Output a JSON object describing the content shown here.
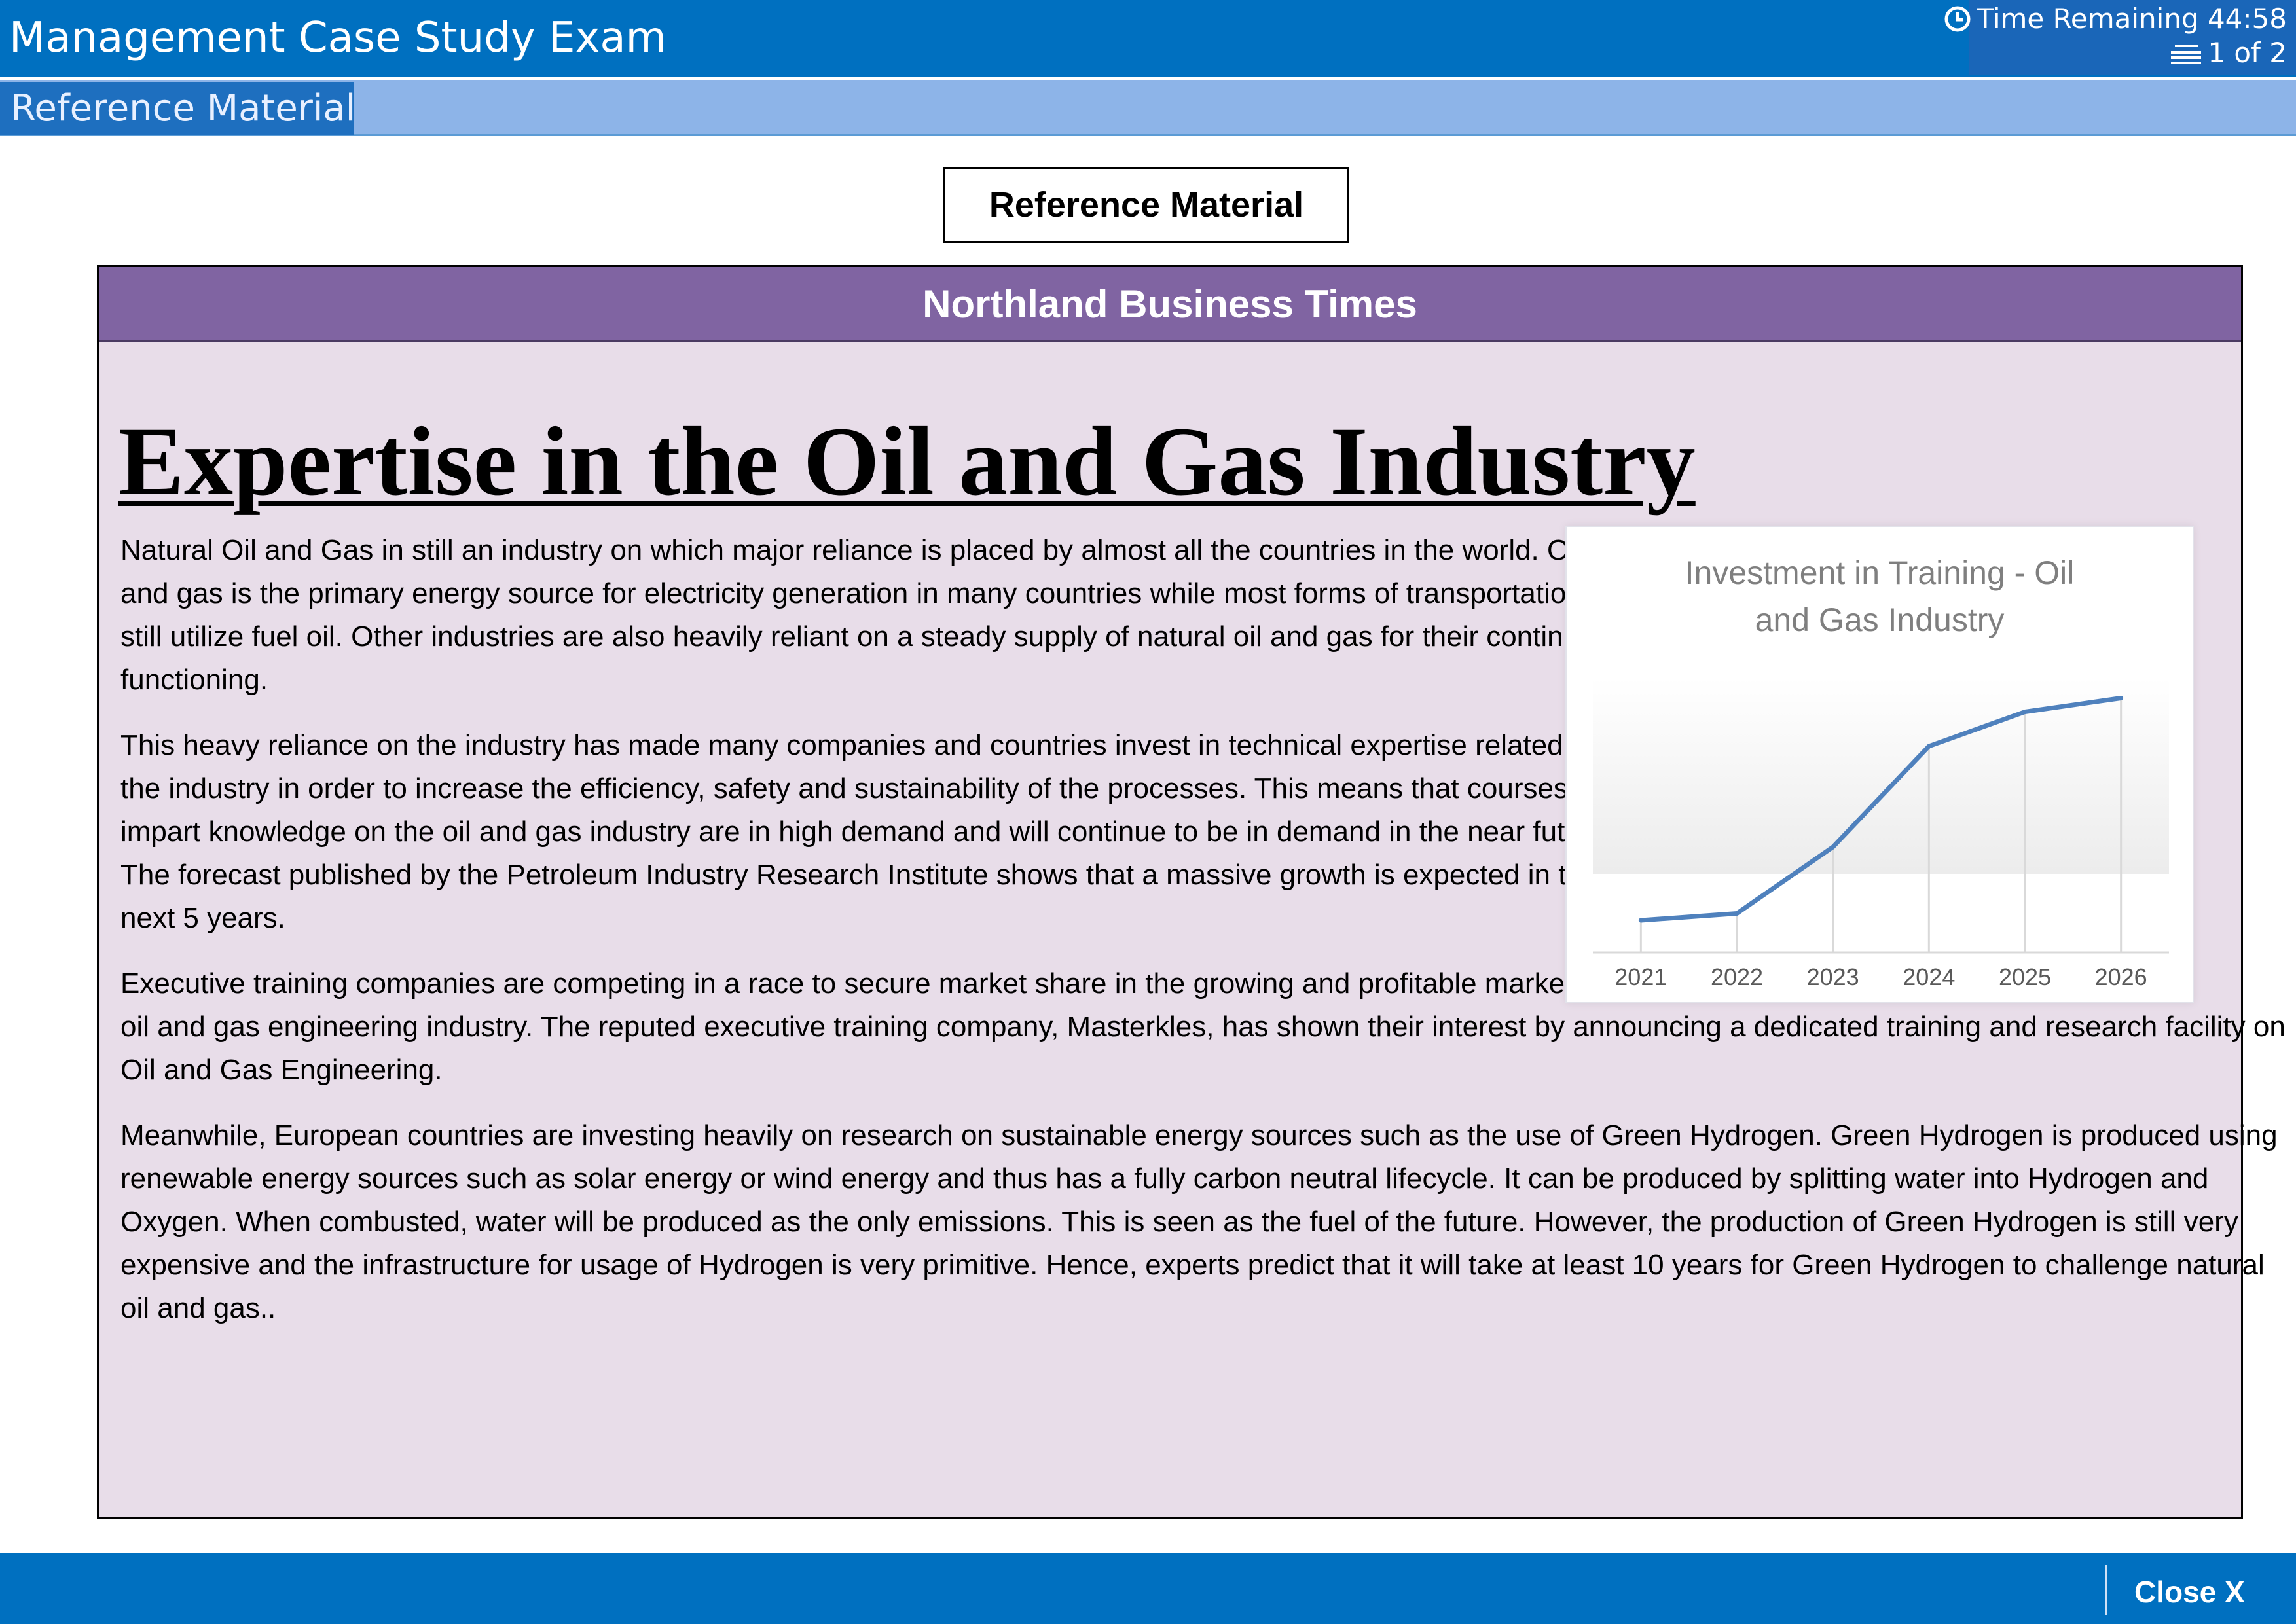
{
  "header": {
    "title": "Management Case Study Exam",
    "time_remaining": "Time Remaining 44:58",
    "page_count": "1 of 2"
  },
  "subbar": {
    "tab_label": "Reference Material"
  },
  "reference_label": "Reference Material",
  "newspaper": {
    "name": "Northland Business Times",
    "headline": "Expertise in the Oil and Gas Industry",
    "paragraphs": [
      "Natural Oil and Gas in still an industry on which major reliance is placed by almost all the countries in the world. Oil and gas is the primary energy source for electricity generation in many countries while most forms of transportation still utilize fuel oil. Other industries are also heavily reliant on a steady supply of natural oil and gas for their continuous functioning.",
      "This heavy reliance on the industry has made many companies and countries invest in technical expertise related to the industry in order to increase the efficiency, safety and sustainability of the processes. This means that courses that impart knowledge on the oil and gas industry are in high demand and will continue to be in demand in the near future. The forecast published by the Petroleum Industry Research Institute shows that a massive growth is expected in the next 5 years.",
      "Executive training companies are competing in a race to secure market share in the growing and profitable market for oil and gas engineering industry. The reputed executive training company, Masterkles, has shown their interest by announcing a dedicated training and research facility on Oil and Gas Engineering.",
      "Meanwhile, European countries are investing heavily on research on sustainable energy sources such as the use of Green Hydrogen. Green Hydrogen is produced using renewable energy sources such as solar energy or wind energy and thus has a fully carbon neutral lifecycle. It can be produced by splitting water into Hydrogen and Oxygen. When combusted, water will be produced as the only emissions. This is seen as the fuel of the future. However, the production of Green Hydrogen is still very expensive and the infrastructure for usage of Hydrogen is very primitive. Hence, experts predict that it will take at least 10 years for Green Hydrogen to challenge natural oil and gas.."
    ]
  },
  "chart_data": {
    "type": "line",
    "title_lines": [
      "Investment in Training - Oil",
      "and Gas Industry"
    ],
    "categories": [
      "2021",
      "2022",
      "2023",
      "2024",
      "2025",
      "2026"
    ],
    "values": [
      14,
      17,
      46,
      90,
      105,
      111
    ],
    "ylim": [
      0,
      120
    ],
    "grid": "vertical",
    "line_color": "#4f81bd"
  },
  "footer": {
    "close_label": "Close X"
  }
}
